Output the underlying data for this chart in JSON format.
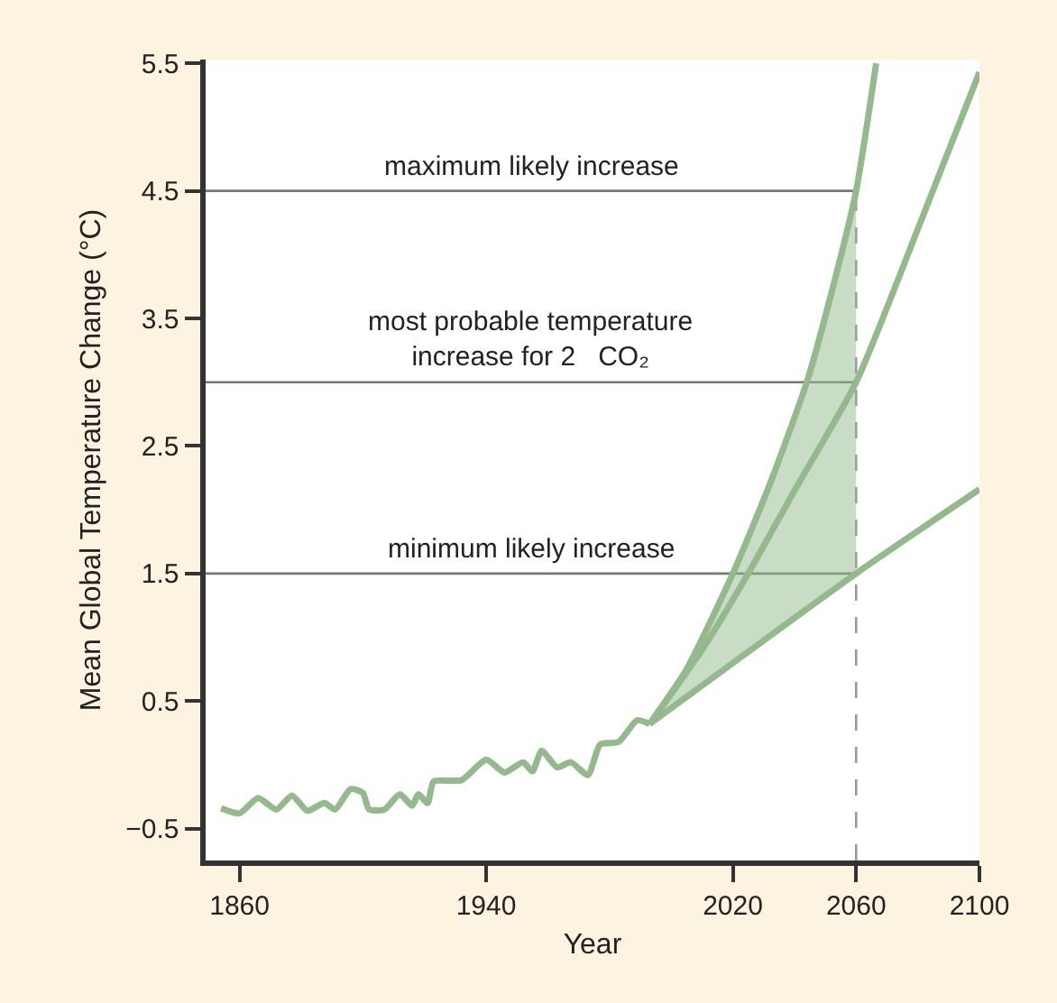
{
  "chart_data": {
    "type": "line",
    "xlabel": "Year",
    "ylabel": "Mean Global Temperature Change (°C)",
    "xlim": [
      1849,
      2100
    ],
    "xticks": [
      1860,
      1940,
      2020,
      2060,
      2100
    ],
    "ylim": [
      -0.75,
      5.53
    ],
    "yticks": [
      {
        "value": -0.5,
        "label": "−0.5"
      },
      0.5,
      1.5,
      2.5,
      3.5,
      4.5,
      5.5
    ],
    "grid": false,
    "marker": "none",
    "line_style": "solid",
    "series": [
      {
        "color": "#93b98c",
        "x": [
          1854,
          1860,
          1866,
          1872,
          1877,
          1882,
          1887.5,
          1891,
          1896,
          1900,
          1902,
          1907,
          1912,
          1916,
          1918,
          1921,
          1923,
          1932,
          1940,
          1946,
          1952,
          1955,
          1958,
          1963,
          1967.5,
          1973,
          1977,
          1983,
          1989,
          1993
        ],
        "values": [
          -0.34,
          -0.38,
          -0.26,
          -0.35,
          -0.24,
          -0.36,
          -0.3,
          -0.35,
          -0.19,
          -0.22,
          -0.35,
          -0.35,
          -0.23,
          -0.32,
          -0.23,
          -0.3,
          -0.13,
          -0.12,
          0.04,
          -0.06,
          0.02,
          -0.05,
          0.11,
          -0.02,
          0.02,
          -0.08,
          0.16,
          0.18,
          0.35,
          0.32
        ]
      },
      {
        "color": "#93b98c",
        "x": [
          1993,
          2005,
          2020,
          2032,
          2044,
          2052,
          2060,
          2066.5
        ],
        "values": [
          0.32,
          0.75,
          1.5,
          2.2,
          3.0,
          3.7,
          4.5,
          5.5
        ]
      },
      {
        "color": "#93b98c",
        "x": [
          1993,
          2010,
          2025,
          2040,
          2060,
          2080,
          2100
        ],
        "values": [
          0.32,
          0.9,
          1.5,
          2.15,
          3.0,
          4.2,
          5.43
        ],
        "lower": [
          0.32,
          0.62,
          0.88,
          1.15,
          1.5,
          null,
          null
        ],
        "upper": [
          0.32,
          0.98,
          1.78,
          2.72,
          4.5,
          null,
          null
        ]
      },
      {
        "color": "#93b98c",
        "x": [
          1993,
          2060,
          2100
        ],
        "values": [
          0.32,
          1.5,
          2.16
        ]
      }
    ],
    "ref_lines": [
      {
        "axis": "y",
        "value": 4.5,
        "label": "maximum likely increase",
        "color": "#777777",
        "line_style": "solid"
      },
      {
        "axis": "y",
        "value": 3.0,
        "label": "most probable temperature\nincrease for 2   CO₂",
        "color": "#777777",
        "line_style": "solid"
      },
      {
        "axis": "y",
        "value": 1.5,
        "label": "minimum likely increase",
        "color": "#777777",
        "line_style": "solid"
      },
      {
        "axis": "x",
        "value": 2060,
        "color": "#999999",
        "line_style": "dashed"
      }
    ]
  }
}
